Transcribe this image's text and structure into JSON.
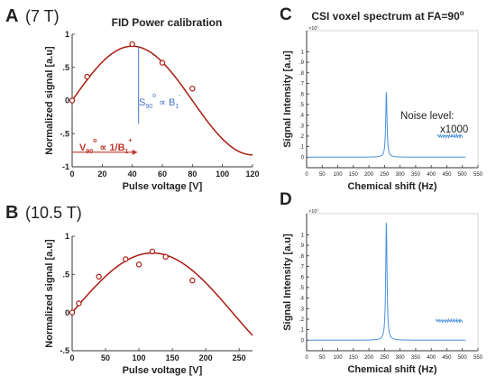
{
  "panels": {
    "A": {
      "letter": "A",
      "field": "(7 T)"
    },
    "B": {
      "letter": "B",
      "field": "(10.5 T)"
    },
    "C": {
      "letter": "C",
      "title": "CSI voxel spectrum at FA=90",
      "title_sup": "o"
    },
    "D": {
      "letter": "D"
    }
  },
  "panel_a_title": "FID Power calibration",
  "annotations": {
    "s90_main": "S",
    "s90_sub": "90",
    "s90_sup": "o",
    "s90_rel": " ∝ B",
    "s90_b_sub": "1",
    "s90_b_sup": "-",
    "v90_main": "V",
    "v90_sub": "90",
    "v90_sup": "o",
    "v90_rel": " ∝ 1/B",
    "v90_b_sub": "1",
    "v90_b_sup": "+",
    "noise_level": "Noise level:",
    "noise_factor": "x1000"
  },
  "colors": {
    "fit_curve": "#a81c10",
    "spectrum": "#4a90d9",
    "annotation_blue": "#4472c4",
    "annotation_red": "#c0392b",
    "axis": "#333333"
  },
  "chart_data": [
    {
      "id": "A",
      "type": "scatter",
      "xlabel": "Pulse voltage [V]",
      "ylabel": "Normalized signal [a.u]",
      "xlim": [
        0,
        120
      ],
      "ylim": [
        -1,
        1
      ],
      "xticks": [
        0,
        20,
        40,
        60,
        80,
        100,
        120
      ],
      "yticks": [
        -1,
        -0.5,
        0,
        0.5,
        1
      ],
      "points": {
        "x": [
          0,
          10,
          40,
          60,
          80
        ],
        "y": [
          0.0,
          0.36,
          0.85,
          0.57,
          0.18
        ]
      },
      "fit": {
        "amplitude": 0.82,
        "period": 160
      }
    },
    {
      "id": "B",
      "type": "scatter",
      "xlabel": "Pulse voltage [V]",
      "ylabel": "Normalized signal [a.u]",
      "xlim": [
        0,
        270
      ],
      "ylim": [
        -0.5,
        1
      ],
      "xticks": [
        0,
        50,
        100,
        150,
        200,
        250
      ],
      "yticks": [
        -0.5,
        0,
        0.5,
        1
      ],
      "points": {
        "x": [
          0,
          10,
          40,
          80,
          100,
          120,
          140,
          180
        ],
        "y": [
          0.0,
          0.12,
          0.47,
          0.7,
          0.63,
          0.8,
          0.73,
          0.42
        ]
      },
      "fit": {
        "amplitude": 0.78,
        "period": 480
      }
    },
    {
      "id": "C",
      "type": "line",
      "xlabel": "Chemical shift (Hz)",
      "ylabel": "Signal Intensity [a.u]",
      "xlim": [
        0,
        550
      ],
      "ylim": [
        -0.1,
        1.2
      ],
      "xticks": [
        0,
        50,
        100,
        150,
        200,
        250,
        300,
        350,
        400,
        450,
        500,
        550
      ],
      "yticks": [
        0,
        0.1,
        0.2,
        0.3,
        0.4,
        0.5,
        0.6,
        0.7,
        0.8,
        0.9,
        1
      ],
      "y_exponent": "×10⁷",
      "peak": {
        "x": 256,
        "height": 0.62,
        "width": 2.5
      },
      "noise_inset": {
        "x": [
          420,
          500
        ],
        "y_level": 0.2
      }
    },
    {
      "id": "D",
      "type": "line",
      "xlabel": "Chemical shift (Hz)",
      "ylabel": "Signal Intensity [a.u]",
      "xlim": [
        0,
        550
      ],
      "ylim": [
        -0.1,
        1.2
      ],
      "xticks": [
        0,
        50,
        100,
        150,
        200,
        250,
        300,
        350,
        400,
        450,
        500,
        550
      ],
      "yticks": [
        0,
        0.1,
        0.2,
        0.3,
        0.4,
        0.5,
        0.6,
        0.7,
        0.8,
        0.9,
        1
      ],
      "y_exponent": "×10⁷",
      "peak": {
        "x": 256,
        "height": 1.12,
        "width": 2.5
      },
      "noise_inset": {
        "x": [
          415,
          500
        ],
        "y_level": 0.185
      }
    }
  ]
}
